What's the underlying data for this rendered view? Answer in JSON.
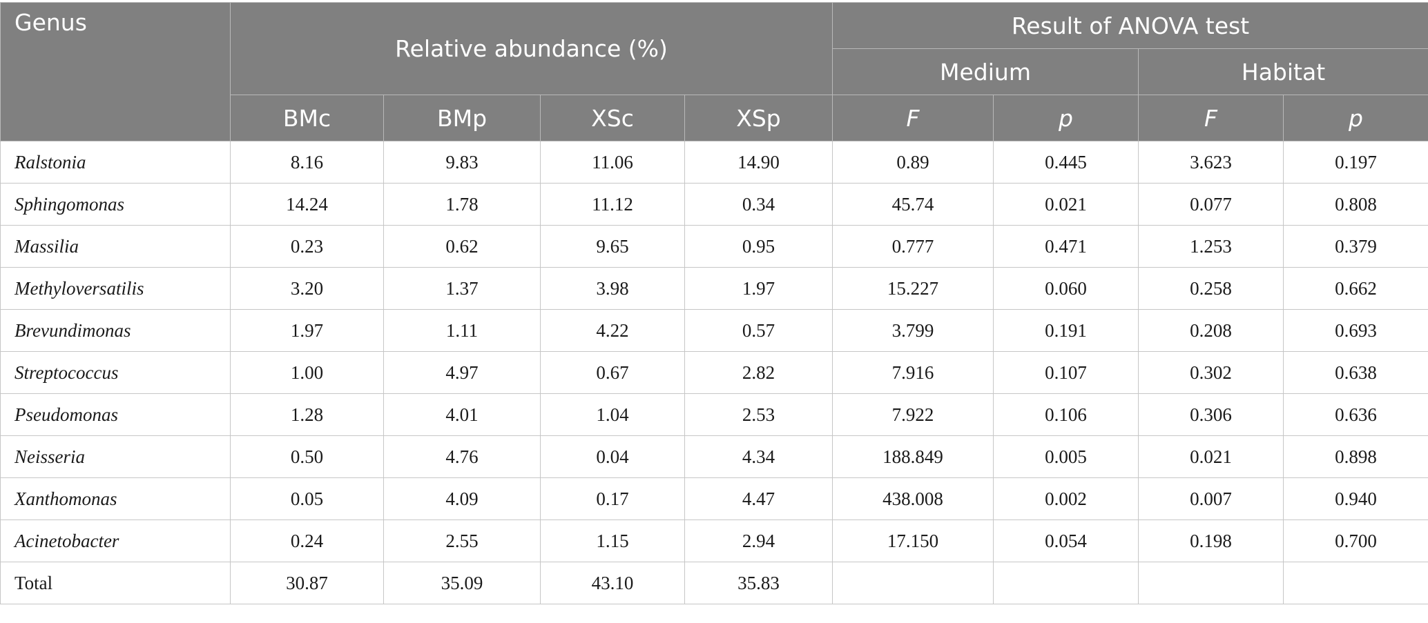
{
  "header": {
    "genus": "Genus",
    "relative_abundance": "Relative abundance (%)",
    "anova": "Result of ANOVA test",
    "medium": "Medium",
    "habitat": "Habitat",
    "samples": [
      "BMc",
      "BMp",
      "XSc",
      "XSp"
    ],
    "stat_f": "F",
    "stat_p": "p"
  },
  "rows": [
    {
      "genus": "Ralstonia",
      "BMc": "8.16",
      "BMp": "9.83",
      "XSc": "11.06",
      "XSp": "14.90",
      "medium_F": "0.89",
      "medium_p": "0.445",
      "habitat_F": "3.623",
      "habitat_p": "0.197"
    },
    {
      "genus": "Sphingomonas",
      "BMc": "14.24",
      "BMp": "1.78",
      "XSc": "11.12",
      "XSp": "0.34",
      "medium_F": "45.74",
      "medium_p": "0.021",
      "habitat_F": "0.077",
      "habitat_p": "0.808"
    },
    {
      "genus": "Massilia",
      "BMc": "0.23",
      "BMp": "0.62",
      "XSc": "9.65",
      "XSp": "0.95",
      "medium_F": "0.777",
      "medium_p": "0.471",
      "habitat_F": "1.253",
      "habitat_p": "0.379"
    },
    {
      "genus": "Methyloversatilis",
      "BMc": "3.20",
      "BMp": "1.37",
      "XSc": "3.98",
      "XSp": "1.97",
      "medium_F": "15.227",
      "medium_p": "0.060",
      "habitat_F": "0.258",
      "habitat_p": "0.662"
    },
    {
      "genus": "Brevundimonas",
      "BMc": "1.97",
      "BMp": "1.11",
      "XSc": "4.22",
      "XSp": "0.57",
      "medium_F": "3.799",
      "medium_p": "0.191",
      "habitat_F": "0.208",
      "habitat_p": "0.693"
    },
    {
      "genus": "Streptococcus",
      "BMc": "1.00",
      "BMp": "4.97",
      "XSc": "0.67",
      "XSp": "2.82",
      "medium_F": "7.916",
      "medium_p": "0.107",
      "habitat_F": "0.302",
      "habitat_p": "0.638"
    },
    {
      "genus": "Pseudomonas",
      "BMc": "1.28",
      "BMp": "4.01",
      "XSc": "1.04",
      "XSp": "2.53",
      "medium_F": "7.922",
      "medium_p": "0.106",
      "habitat_F": "0.306",
      "habitat_p": "0.636"
    },
    {
      "genus": "Neisseria",
      "BMc": "0.50",
      "BMp": "4.76",
      "XSc": "0.04",
      "XSp": "4.34",
      "medium_F": "188.849",
      "medium_p": "0.005",
      "habitat_F": "0.021",
      "habitat_p": "0.898"
    },
    {
      "genus": "Xanthomonas",
      "BMc": "0.05",
      "BMp": "4.09",
      "XSc": "0.17",
      "XSp": "4.47",
      "medium_F": "438.008",
      "medium_p": "0.002",
      "habitat_F": "0.007",
      "habitat_p": "0.940"
    },
    {
      "genus": "Acinetobacter",
      "BMc": "0.24",
      "BMp": "2.55",
      "XSc": "1.15",
      "XSp": "2.94",
      "medium_F": "17.150",
      "medium_p": "0.054",
      "habitat_F": "0.198",
      "habitat_p": "0.700"
    }
  ],
  "total": {
    "label": "Total",
    "BMc": "30.87",
    "BMp": "35.09",
    "XSc": "43.10",
    "XSp": "35.83"
  }
}
